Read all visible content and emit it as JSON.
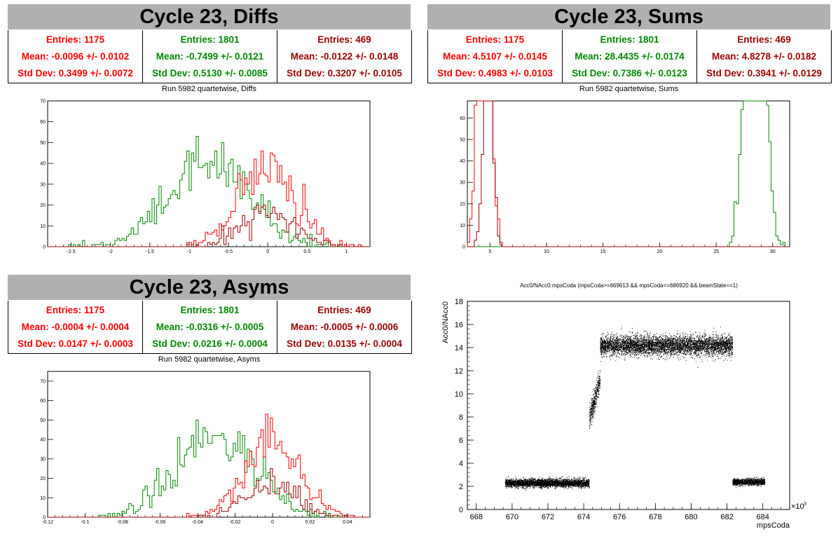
{
  "panels": {
    "diffs": {
      "banner": "Cycle 23, Diffs",
      "title": "Run 5982 quartetwise, Diffs",
      "stats": [
        {
          "entries": "Entries: 1175",
          "mean": "Mean: -0.0096 +/- 0.0102",
          "std": "Std Dev: 0.3499 +/- 0.0072",
          "color": "#ff0000"
        },
        {
          "entries": "Entries: 1801",
          "mean": "Mean: -0.7499 +/- 0.0121",
          "std": "Std Dev: 0.5130 +/- 0.0085",
          "color": "#008800"
        },
        {
          "entries": "Entries: 469",
          "mean": "Mean: -0.0122 +/- 0.0148",
          "std": "Std Dev: 0.3207 +/- 0.0105",
          "color": "#990000"
        }
      ]
    },
    "sums": {
      "banner": "Cycle 23, Sums",
      "title": "Run 5982 quartetwise, Sums",
      "stats": [
        {
          "entries": "Entries: 1175",
          "mean": "Mean: 4.5107 +/- 0.0145",
          "std": "Std Dev: 0.4983 +/- 0.0103",
          "color": "#ff0000"
        },
        {
          "entries": "Entries: 1801",
          "mean": "Mean: 28.4435 +/- 0.0174",
          "std": "Std Dev: 0.7386 +/- 0.0123",
          "color": "#008800"
        },
        {
          "entries": "Entries: 469",
          "mean": "Mean: 4.8278 +/- 0.0182",
          "std": "Std Dev: 0.3941 +/- 0.0129",
          "color": "#990000"
        }
      ]
    },
    "asyms": {
      "banner": "Cycle 23, Asyms",
      "title": "Run 5982 quartetwise, Asyms",
      "stats": [
        {
          "entries": "Entries: 1175",
          "mean": "Mean: -0.0004 +/- 0.0004",
          "std": "Std Dev: 0.0147 +/- 0.0003",
          "color": "#ff0000"
        },
        {
          "entries": "Entries: 1801",
          "mean": "Mean: -0.0316 +/- 0.0005",
          "std": "Std Dev: 0.0216 +/- 0.0004",
          "color": "#008800"
        },
        {
          "entries": "Entries: 469",
          "mean": "Mean: -0.0005 +/- 0.0006",
          "std": "Std Dev: 0.0135 +/- 0.0004",
          "color": "#990000"
        }
      ]
    },
    "scatter": {
      "title": "Acc0/NAcc0:mpsCoda (mpsCoda>=669613 && mpsCoda<=686920 && beamState==1)"
    }
  },
  "chart_data": [
    {
      "type": "histogram",
      "xlim": [
        -2.8,
        1.3
      ],
      "ylim": [
        0,
        70
      ],
      "xticks": [
        -2.5,
        -2,
        -1.5,
        -1,
        -0.5,
        0,
        0.5,
        1
      ],
      "yticks": [
        0,
        10,
        20,
        30,
        40,
        50,
        60,
        70
      ],
      "series": [
        {
          "color": "#008800",
          "mean": -0.7499,
          "std": 0.513,
          "entries": 1801
        },
        {
          "color": "#ff0000",
          "mean": -0.0096,
          "std": 0.3499,
          "entries": 1175
        },
        {
          "color": "#990000",
          "mean": -0.0122,
          "std": 0.3207,
          "entries": 469
        }
      ]
    },
    {
      "type": "histogram",
      "xlim": [
        3.0,
        31.5
      ],
      "ylim": [
        0,
        68
      ],
      "xticks": [
        5,
        10,
        15,
        20,
        25,
        30
      ],
      "yticks": [
        0,
        10,
        20,
        30,
        40,
        50,
        60
      ],
      "series": [
        {
          "color": "#008800",
          "mean": 28.4435,
          "std": 0.7386,
          "entries": 1801
        },
        {
          "color": "#ff0000",
          "mean": 4.5107,
          "std": 0.4983,
          "entries": 1175
        },
        {
          "color": "#990000",
          "mean": 4.8278,
          "std": 0.3941,
          "entries": 469
        }
      ]
    },
    {
      "type": "histogram",
      "xlim": [
        -0.12,
        0.052
      ],
      "ylim": [
        0,
        75
      ],
      "xticks": [
        -0.12,
        -0.1,
        -0.08,
        -0.06,
        -0.04,
        -0.02,
        0,
        0.02,
        0.04
      ],
      "yticks": [
        0,
        10,
        20,
        30,
        40,
        50,
        60,
        70
      ],
      "series": [
        {
          "color": "#008800",
          "mean": -0.0316,
          "std": 0.0216,
          "entries": 1801
        },
        {
          "color": "#ff0000",
          "mean": -0.0004,
          "std": 0.0147,
          "entries": 1175
        },
        {
          "color": "#990000",
          "mean": -0.0005,
          "std": 0.0135,
          "entries": 469
        }
      ]
    },
    {
      "type": "scatter",
      "xlabel": "mpsCoda",
      "ylabel": "Acc0/NAcc0",
      "xexp": "×10",
      "xexp_power": "3",
      "xlim": [
        667.5,
        685.5
      ],
      "ylim": [
        0,
        18
      ],
      "xticks": [
        668,
        670,
        672,
        674,
        676,
        678,
        680,
        682,
        684
      ],
      "yticks": [
        0,
        2,
        4,
        6,
        8,
        10,
        12,
        14,
        16,
        18
      ],
      "segments": [
        {
          "x": [
            669.6,
            674.3
          ],
          "y": 2.3,
          "spread": 0.25
        },
        {
          "x": [
            674.3,
            674.9
          ],
          "y": 9.2,
          "spread": 0.5
        },
        {
          "x": [
            674.9,
            682.3
          ],
          "y": 14.2,
          "spread": 0.6
        },
        {
          "x": [
            682.3,
            684.1
          ],
          "y": 2.4,
          "spread": 0.2
        }
      ]
    }
  ]
}
